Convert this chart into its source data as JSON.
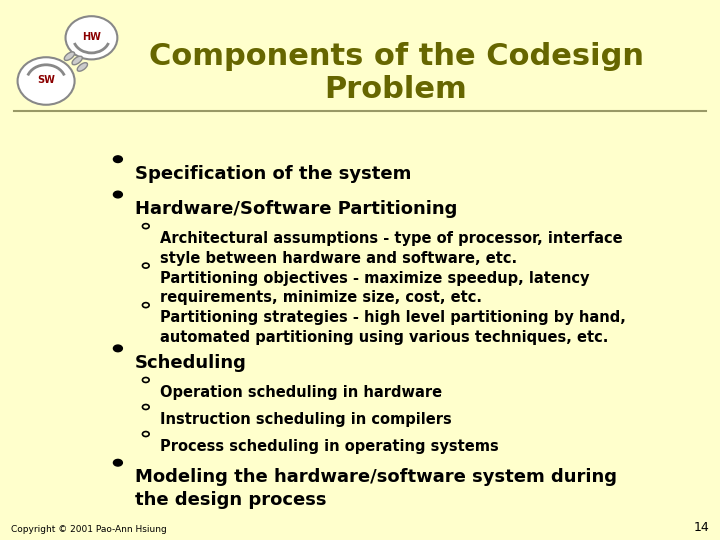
{
  "bg_color": "#FFFFCC",
  "title_line1": "Components of the Codesign",
  "title_line2": "Problem",
  "title_color": "#666600",
  "title_fontsize": 22,
  "sep_line_color": "#999966",
  "copyright": "Copyright © 2001 Pao-Ann Hsiung",
  "page_num": "14",
  "l1_items": [
    "Specification of the system",
    "Hardware/Software Partitioning"
  ],
  "l2_items": [
    "Architectural assumptions - type of processor, interface\nstyle between hardware and software, etc.",
    "Partitioning objectives - maximize speedup, latency\nrequirements, minimize size, cost, etc.",
    "Partitioning strategies - high level partitioning by hand,\nautomated partitioning using various techniques, etc."
  ],
  "l3_items": [
    "Scheduling"
  ],
  "l4_items": [
    "Operation scheduling in hardware",
    "Instruction scheduling in compilers",
    "Process scheduling in operating systems"
  ],
  "l5_items": [
    "Modeling the hardware/software system during\nthe design process"
  ],
  "l1_fontsize": 13,
  "l2_fontsize": 10.5,
  "l3_fontsize": 13,
  "l4_fontsize": 10.5,
  "l5_fontsize": 13,
  "copyright_fontsize": 6.5,
  "pagenum_fontsize": 9
}
